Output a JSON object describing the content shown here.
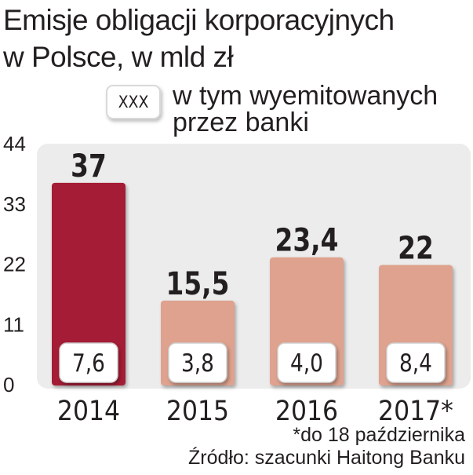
{
  "title": {
    "line1": "Emisje obligacji korporacyjnych",
    "line2": "w Polsce, w mld zł"
  },
  "legend": {
    "box_label": "XXX",
    "text_line1": "w tym wyemitowanych",
    "text_line2": "przez banki"
  },
  "footnotes": {
    "note": "*do 18 października",
    "source": "Źródło: szacunki Haitong Banku"
  },
  "colors": {
    "highlight_bar": "#a41e35",
    "regular_bar": "#dea28e",
    "panel": "#ececec"
  },
  "chart_data": {
    "type": "bar",
    "title": "Emisje obligacji korporacyjnych w Polsce, w mld zł",
    "categories": [
      "2014",
      "2015",
      "2016",
      "2017*"
    ],
    "series": [
      {
        "name": "",
        "values": [
          37,
          15.5,
          23.4,
          22
        ],
        "value_labels": [
          "37",
          "15,5",
          "23,4",
          "22"
        ]
      },
      {
        "name": "w tym wyemitowanych przez banki",
        "values": [
          7.6,
          3.8,
          4.0,
          8.4
        ],
        "value_labels": [
          "7,6",
          "3,8",
          "4,0",
          "8,4"
        ]
      }
    ],
    "highlighted_category": "2014",
    "yticks": [
      "0",
      "11",
      "22",
      "33",
      "44"
    ],
    "ylim": [
      0,
      44
    ],
    "xlabel": "",
    "ylabel": "",
    "grid": false,
    "legend_position": "top"
  }
}
